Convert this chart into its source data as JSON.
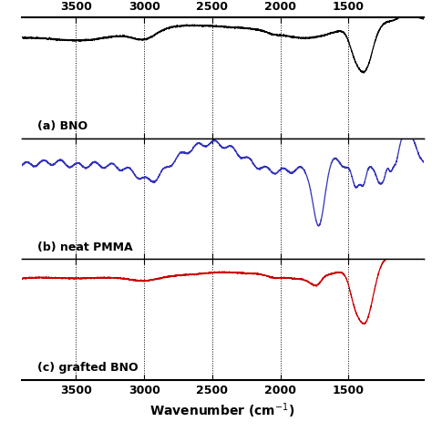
{
  "xlabel": "Wavenumber (cm$^{-1}$)",
  "xmin": 950,
  "xmax": 3900,
  "xticks": [
    3500,
    3000,
    2500,
    2000,
    1500
  ],
  "dashed_lines": [
    3500,
    3000,
    2500,
    2000,
    1500
  ],
  "panel_a_label": "(a) BNO",
  "panel_b_label": "(b) neat PMMA",
  "panel_c_label": "(c) grafted BNO",
  "color_a": "#000000",
  "color_b": "#3333bb",
  "color_c": "#cc0000",
  "background": "#ffffff"
}
